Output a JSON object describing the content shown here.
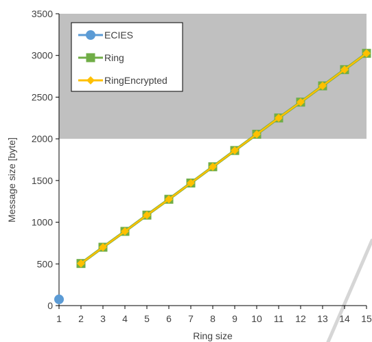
{
  "chart_data": {
    "type": "line",
    "xlabel": "Ring size",
    "ylabel": "Message size [byte]",
    "xlim": [
      1,
      15
    ],
    "ylim": [
      0,
      3500
    ],
    "x_ticks": [
      1,
      2,
      3,
      4,
      5,
      6,
      7,
      8,
      9,
      10,
      11,
      12,
      13,
      14,
      15
    ],
    "y_ticks": [
      0,
      500,
      1000,
      1500,
      2000,
      2500,
      3000,
      3500
    ],
    "grid": false,
    "legend_position": "top-left",
    "shaded_region": {
      "y_from": 2000,
      "y_to": 3500,
      "color": "#c0c0c0"
    },
    "series": [
      {
        "name": "ECIES",
        "color": "#5B9BD5",
        "marker": "circle",
        "x": [
          1
        ],
        "y": [
          75
        ]
      },
      {
        "name": "Ring",
        "color": "#70AD47",
        "marker": "square",
        "x": [
          2,
          3,
          4,
          5,
          6,
          7,
          8,
          9,
          10,
          11,
          12,
          13,
          14,
          15
        ],
        "y": [
          505,
          700,
          890,
          1085,
          1275,
          1470,
          1665,
          1860,
          2055,
          2250,
          2440,
          2635,
          2830,
          3025
        ]
      },
      {
        "name": "RingEncrypted",
        "color": "#FFC000",
        "marker": "diamond",
        "x": [
          2,
          3,
          4,
          5,
          6,
          7,
          8,
          9,
          10,
          11,
          12,
          13,
          14,
          15
        ],
        "y": [
          505,
          700,
          890,
          1085,
          1275,
          1470,
          1665,
          1860,
          2055,
          2250,
          2440,
          2635,
          2830,
          3025
        ]
      }
    ]
  }
}
